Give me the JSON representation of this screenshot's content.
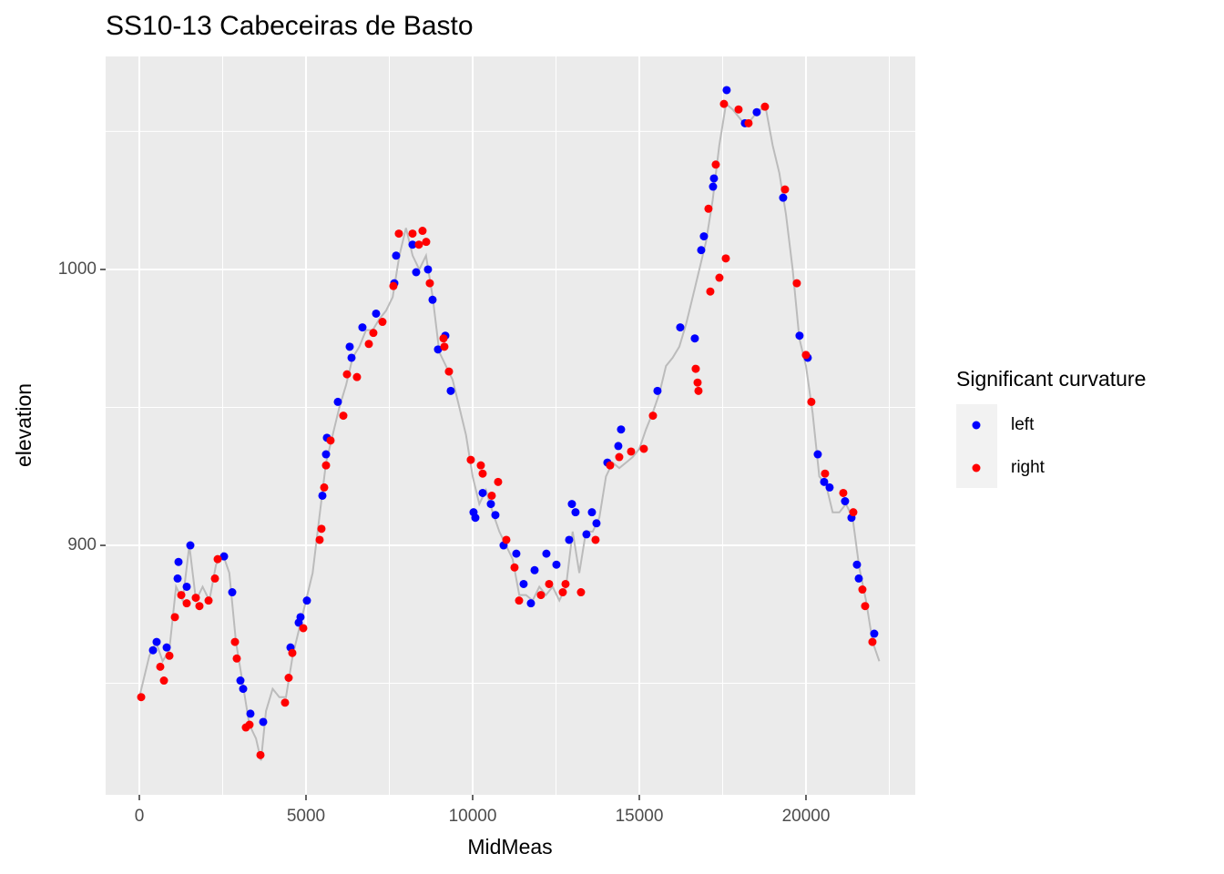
{
  "chart_data": {
    "type": "scatter",
    "title": "SS10-13 Cabeceiras de Basto",
    "x_label": "MidMeas",
    "y_label": "elevation",
    "legend_title": "Significant curvature",
    "xlim": [
      -1011,
      23279
    ],
    "ylim": [
      809.6,
      1077.2
    ],
    "xticks": [
      0,
      5000,
      10000,
      15000,
      20000
    ],
    "yticks": [
      900,
      1000
    ],
    "x_minor_breaks": [
      2500,
      7500,
      12500,
      17500,
      22500
    ],
    "y_minor_breaks": [
      850,
      950,
      1050
    ],
    "grid": true,
    "legend_position": "right",
    "profile": {
      "color": "#bbbbbb",
      "x": [
        0,
        300,
        500,
        700,
        900,
        1100,
        1300,
        1500,
        1700,
        1900,
        2100,
        2300,
        2500,
        2700,
        2900,
        3100,
        3300,
        3500,
        3650,
        3800,
        4000,
        4200,
        4400,
        4600,
        4800,
        5000,
        5200,
        5400,
        5600,
        5800,
        6000,
        6200,
        6400,
        6600,
        6800,
        7000,
        7200,
        7400,
        7600,
        7800,
        8000,
        8200,
        8400,
        8600,
        8800,
        9000,
        9200,
        9400,
        9600,
        9800,
        10000,
        10200,
        10400,
        10600,
        10800,
        11000,
        11200,
        11400,
        11600,
        11800,
        12000,
        12200,
        12400,
        12600,
        12800,
        13000,
        13200,
        13400,
        13600,
        13800,
        14000,
        14200,
        14400,
        14600,
        14800,
        15000,
        15200,
        15400,
        15600,
        15800,
        16000,
        16200,
        16400,
        16600,
        16800,
        17000,
        17200,
        17400,
        17600,
        17800,
        18000,
        18200,
        18400,
        18600,
        18800,
        19000,
        19200,
        19400,
        19600,
        19800,
        20000,
        20200,
        20400,
        20600,
        20800,
        21000,
        21200,
        21400,
        21600,
        21800,
        22000,
        22200
      ],
      "values": [
        845,
        860,
        865,
        858,
        862,
        885,
        880,
        900,
        880,
        885,
        880,
        893,
        897,
        890,
        865,
        850,
        835,
        830,
        822,
        840,
        848,
        845,
        845,
        860,
        870,
        880,
        890,
        910,
        930,
        940,
        950,
        958,
        968,
        972,
        978,
        978,
        982,
        985,
        990,
        1005,
        1015,
        1005,
        1000,
        1005,
        990,
        970,
        965,
        960,
        950,
        940,
        925,
        915,
        920,
        912,
        905,
        900,
        895,
        882,
        882,
        880,
        885,
        882,
        885,
        880,
        885,
        905,
        890,
        905,
        905,
        910,
        925,
        930,
        928,
        930,
        932,
        935,
        942,
        948,
        955,
        965,
        968,
        972,
        980,
        990,
        1000,
        1010,
        1025,
        1045,
        1060,
        1058,
        1055,
        1052,
        1055,
        1058,
        1058,
        1045,
        1035,
        1020,
        1000,
        975,
        965,
        948,
        925,
        922,
        912,
        912,
        915,
        910,
        892,
        880,
        865,
        858
      ]
    },
    "series": [
      {
        "name": "left",
        "color": "#0000ff",
        "x": [
          410,
          519,
          820,
          1148,
          1175,
          1421,
          1530,
          2541,
          2787,
          3033,
          3115,
          3333,
          3716,
          4535,
          4781,
          4836,
          5027,
          5492,
          5601,
          5628,
          5956,
          6311,
          6366,
          6693,
          7103,
          7650,
          7704,
          8196,
          8305,
          8660,
          8797,
          8961,
          9180,
          9343,
          10026,
          10081,
          10300,
          10546,
          10682,
          10928,
          11310,
          11529,
          11748,
          11858,
          12212,
          12513,
          12895,
          12977,
          13086,
          13414,
          13578,
          13715,
          14043,
          14370,
          14452,
          15545,
          16228,
          16665,
          16857,
          16938,
          17212,
          17239,
          17621,
          18168,
          18523,
          19315,
          19807,
          20053,
          20354,
          20545,
          20709,
          21173,
          21365,
          21529,
          21584,
          22048
        ],
        "values": [
          862,
          865,
          863,
          888,
          894,
          885,
          900,
          896,
          883,
          851,
          848,
          839,
          836,
          863,
          872,
          874,
          880,
          918,
          933,
          939,
          952,
          972,
          968,
          979,
          984,
          995,
          1005,
          1009,
          999,
          1000,
          989,
          971,
          976,
          956,
          912,
          910,
          919,
          915,
          911,
          900,
          897,
          886,
          879,
          891,
          897,
          893,
          902,
          915,
          912,
          904,
          912,
          908,
          930,
          936,
          942,
          956,
          979,
          975,
          1007,
          1012,
          1030,
          1033,
          1065,
          1053,
          1057,
          1026,
          976,
          968,
          933,
          923,
          921,
          916,
          910,
          893,
          888,
          868
        ]
      },
      {
        "name": "right",
        "color": "#ff0000",
        "x": [
          55,
          628,
          738,
          902,
          1066,
          1257,
          1421,
          1694,
          1803,
          2077,
          2268,
          2350,
          2869,
          2923,
          3196,
          3306,
          3634,
          4371,
          4480,
          4590,
          4918,
          5409,
          5464,
          5546,
          5601,
          5737,
          6120,
          6229,
          6529,
          6885,
          7021,
          7294,
          7622,
          7786,
          8196,
          8387,
          8496,
          8606,
          8715,
          9125,
          9152,
          9289,
          9944,
          10245,
          10300,
          10573,
          10764,
          11010,
          11256,
          11393,
          12048,
          12294,
          12704,
          12786,
          13250,
          13687,
          14124,
          14398,
          14753,
          15136,
          15409,
          16693,
          16748,
          16775,
          17075,
          17130,
          17294,
          17403,
          17540,
          17595,
          17977,
          18277,
          18769,
          19370,
          19725,
          19998,
          20162,
          20572,
          21119,
          21420,
          21693,
          21775,
          21994
        ],
        "values": [
          845,
          856,
          851,
          860,
          874,
          882,
          879,
          881,
          878,
          880,
          888,
          895,
          865,
          859,
          834,
          835,
          824,
          843,
          852,
          861,
          870,
          902,
          906,
          921,
          929,
          938,
          947,
          962,
          961,
          973,
          977,
          981,
          994,
          1013,
          1013,
          1009,
          1014,
          1010,
          995,
          975,
          972,
          963,
          931,
          929,
          926,
          918,
          923,
          902,
          892,
          880,
          882,
          886,
          883,
          886,
          883,
          902,
          929,
          932,
          934,
          935,
          947,
          964,
          959,
          956,
          1022,
          992,
          1038,
          997,
          1060,
          1004,
          1058,
          1053,
          1059,
          1029,
          995,
          969,
          952,
          926,
          919,
          912,
          884,
          878,
          865
        ]
      }
    ]
  }
}
